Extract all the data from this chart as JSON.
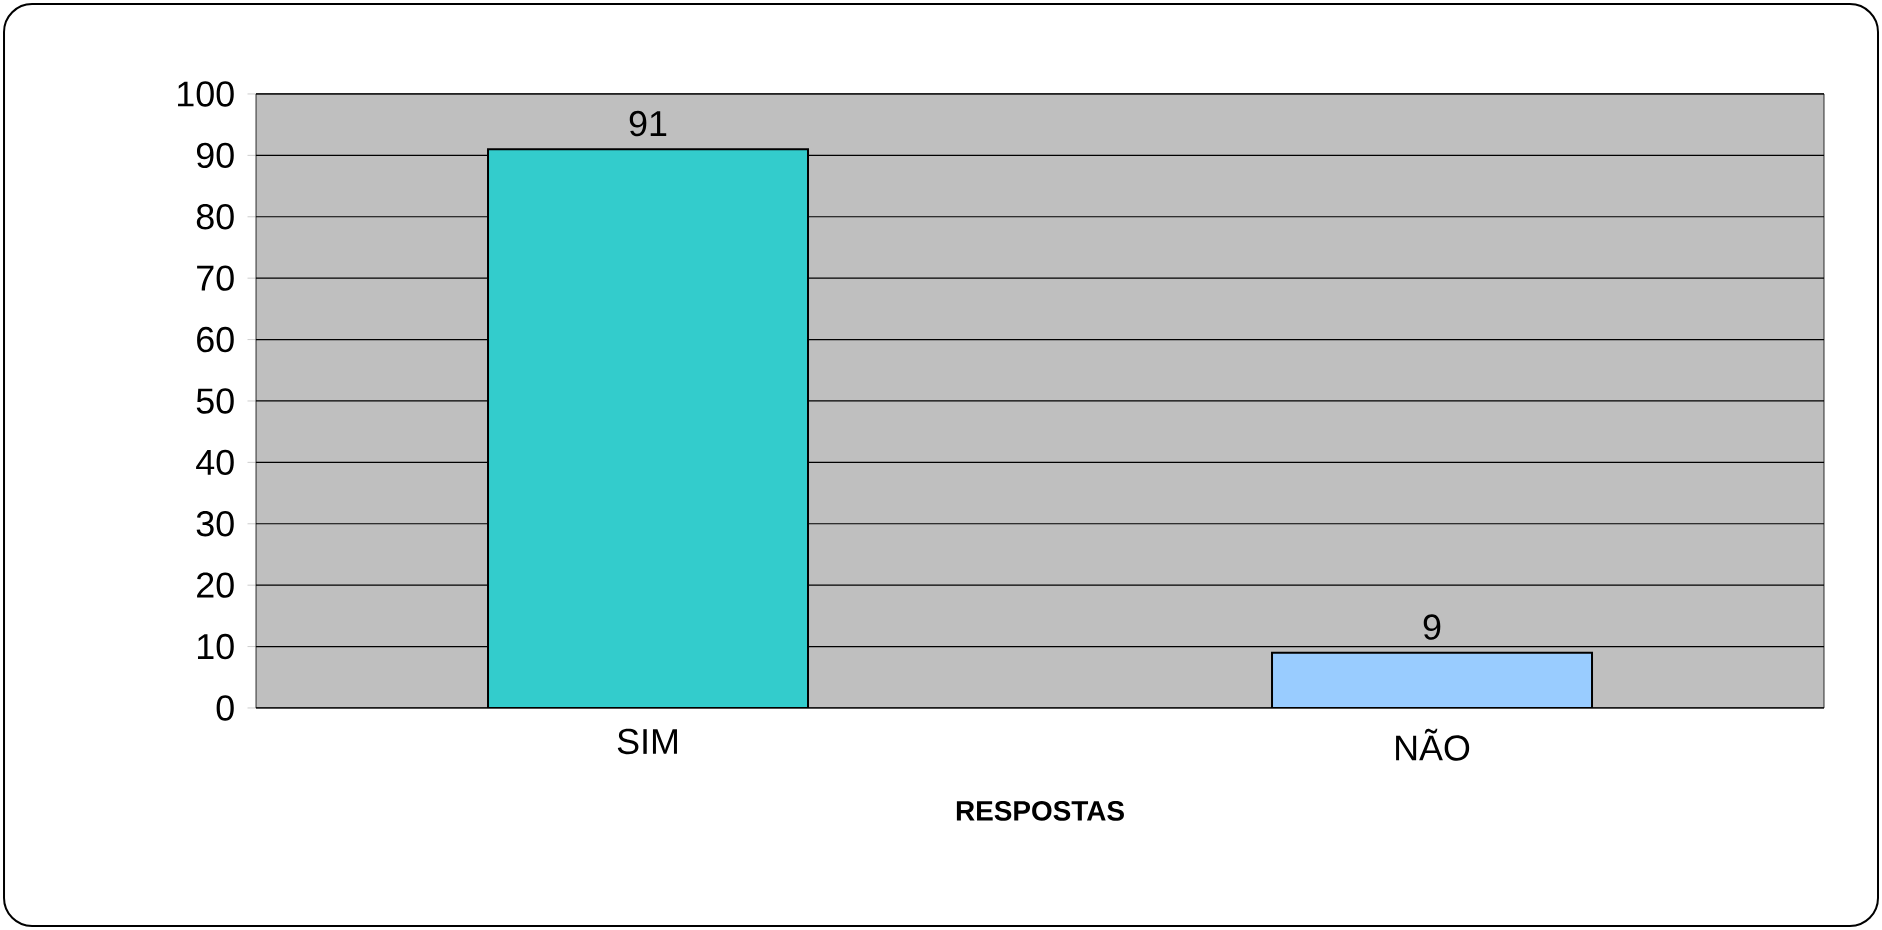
{
  "chart_data": {
    "type": "bar",
    "xlabel": "**RESPOSTAS**",
    "categories": [
      "SIM",
      "NÃO"
    ],
    "values": [
      91,
      9
    ],
    "colors": [
      "#33cccc",
      "#99ccff"
    ],
    "ylim": [
      0,
      100
    ],
    "yticks": [
      0,
      10,
      20,
      30,
      40,
      50,
      60,
      70,
      80,
      90,
      100
    ],
    "grid": "y",
    "data_labels": true
  }
}
